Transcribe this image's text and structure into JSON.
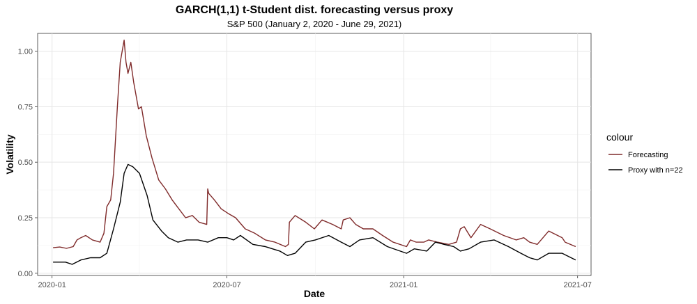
{
  "chart_data": {
    "type": "line",
    "title": "GARCH(1,1) t-Student dist. forecasting versus proxy",
    "subtitle": "S&P 500 (January 2, 2020 - June 29, 2021)",
    "xlabel": "Date",
    "ylabel": "Volatility",
    "xlim": [
      "2019-12-17",
      "2021-07-15"
    ],
    "ylim": [
      -0.01,
      1.08
    ],
    "x_ticks": [
      "2020-01",
      "2020-07",
      "2021-01",
      "2021-07"
    ],
    "y_ticks": [
      "0.00",
      "0.25",
      "0.50",
      "0.75",
      "1.00"
    ],
    "grid": true,
    "legend_title": "colour",
    "legend_position": "right",
    "series": [
      {
        "name": "Forecasting",
        "color": "#7f2a2a",
        "x": [
          "2020-01-02",
          "2020-01-09",
          "2020-01-16",
          "2020-01-23",
          "2020-01-27",
          "2020-01-31",
          "2020-02-05",
          "2020-02-12",
          "2020-02-20",
          "2020-02-24",
          "2020-02-27",
          "2020-03-02",
          "2020-03-05",
          "2020-03-09",
          "2020-03-12",
          "2020-03-16",
          "2020-03-18",
          "2020-03-20",
          "2020-03-23",
          "2020-03-26",
          "2020-03-31",
          "2020-04-03",
          "2020-04-08",
          "2020-04-14",
          "2020-04-21",
          "2020-04-28",
          "2020-05-05",
          "2020-05-12",
          "2020-05-19",
          "2020-05-26",
          "2020-06-02",
          "2020-06-10",
          "2020-06-11",
          "2020-06-12",
          "2020-06-18",
          "2020-06-25",
          "2020-07-02",
          "2020-07-10",
          "2020-07-20",
          "2020-07-30",
          "2020-08-10",
          "2020-08-20",
          "2020-08-31",
          "2020-09-03",
          "2020-09-04",
          "2020-09-10",
          "2020-09-21",
          "2020-09-30",
          "2020-10-08",
          "2020-10-19",
          "2020-10-28",
          "2020-10-30",
          "2020-11-06",
          "2020-11-12",
          "2020-11-20",
          "2020-11-30",
          "2020-12-10",
          "2020-12-21",
          "2021-01-04",
          "2021-01-08",
          "2021-01-14",
          "2021-01-22",
          "2021-01-27",
          "2021-02-05",
          "2021-02-17",
          "2021-02-25",
          "2021-03-01",
          "2021-03-05",
          "2021-03-12",
          "2021-03-22",
          "2021-04-01",
          "2021-04-15",
          "2021-04-28",
          "2021-05-06",
          "2021-05-12",
          "2021-05-20",
          "2021-06-01",
          "2021-06-15",
          "2021-06-18",
          "2021-06-29"
        ],
        "y": [
          0.115,
          0.118,
          0.112,
          0.12,
          0.15,
          0.16,
          0.17,
          0.15,
          0.14,
          0.18,
          0.3,
          0.33,
          0.45,
          0.75,
          0.95,
          1.05,
          0.95,
          0.9,
          0.95,
          0.86,
          0.74,
          0.75,
          0.62,
          0.52,
          0.42,
          0.38,
          0.33,
          0.29,
          0.25,
          0.26,
          0.23,
          0.22,
          0.38,
          0.36,
          0.33,
          0.29,
          0.27,
          0.25,
          0.2,
          0.18,
          0.15,
          0.14,
          0.12,
          0.13,
          0.23,
          0.26,
          0.23,
          0.2,
          0.24,
          0.22,
          0.2,
          0.24,
          0.25,
          0.22,
          0.2,
          0.2,
          0.17,
          0.14,
          0.12,
          0.15,
          0.14,
          0.14,
          0.15,
          0.14,
          0.13,
          0.14,
          0.2,
          0.21,
          0.16,
          0.22,
          0.2,
          0.17,
          0.15,
          0.16,
          0.14,
          0.13,
          0.19,
          0.16,
          0.14,
          0.12
        ]
      },
      {
        "name": "Proxy with n=22",
        "color": "#000000",
        "x": [
          "2020-01-02",
          "2020-01-15",
          "2020-01-22",
          "2020-01-31",
          "2020-02-10",
          "2020-02-20",
          "2020-02-27",
          "2020-03-05",
          "2020-03-12",
          "2020-03-16",
          "2020-03-20",
          "2020-03-25",
          "2020-04-01",
          "2020-04-09",
          "2020-04-15",
          "2020-04-24",
          "2020-05-01",
          "2020-05-11",
          "2020-05-20",
          "2020-06-01",
          "2020-06-11",
          "2020-06-22",
          "2020-07-01",
          "2020-07-08",
          "2020-07-15",
          "2020-07-28",
          "2020-08-10",
          "2020-08-25",
          "2020-09-02",
          "2020-09-10",
          "2020-09-21",
          "2020-10-01",
          "2020-10-15",
          "2020-10-28",
          "2020-11-06",
          "2020-11-16",
          "2020-11-30",
          "2020-12-15",
          "2021-01-04",
          "2021-01-12",
          "2021-01-25",
          "2021-02-03",
          "2021-02-12",
          "2021-02-22",
          "2021-03-01",
          "2021-03-10",
          "2021-03-22",
          "2021-04-05",
          "2021-04-20",
          "2021-05-03",
          "2021-05-12",
          "2021-05-20",
          "2021-06-01",
          "2021-06-15",
          "2021-06-29"
        ],
        "y": [
          0.05,
          0.05,
          0.04,
          0.06,
          0.07,
          0.07,
          0.09,
          0.2,
          0.32,
          0.45,
          0.49,
          0.48,
          0.45,
          0.35,
          0.24,
          0.19,
          0.16,
          0.14,
          0.15,
          0.15,
          0.14,
          0.16,
          0.16,
          0.15,
          0.17,
          0.13,
          0.12,
          0.1,
          0.08,
          0.09,
          0.14,
          0.15,
          0.17,
          0.14,
          0.12,
          0.15,
          0.16,
          0.12,
          0.09,
          0.11,
          0.1,
          0.14,
          0.13,
          0.12,
          0.1,
          0.11,
          0.14,
          0.15,
          0.12,
          0.09,
          0.07,
          0.06,
          0.09,
          0.09,
          0.06
        ]
      }
    ]
  }
}
